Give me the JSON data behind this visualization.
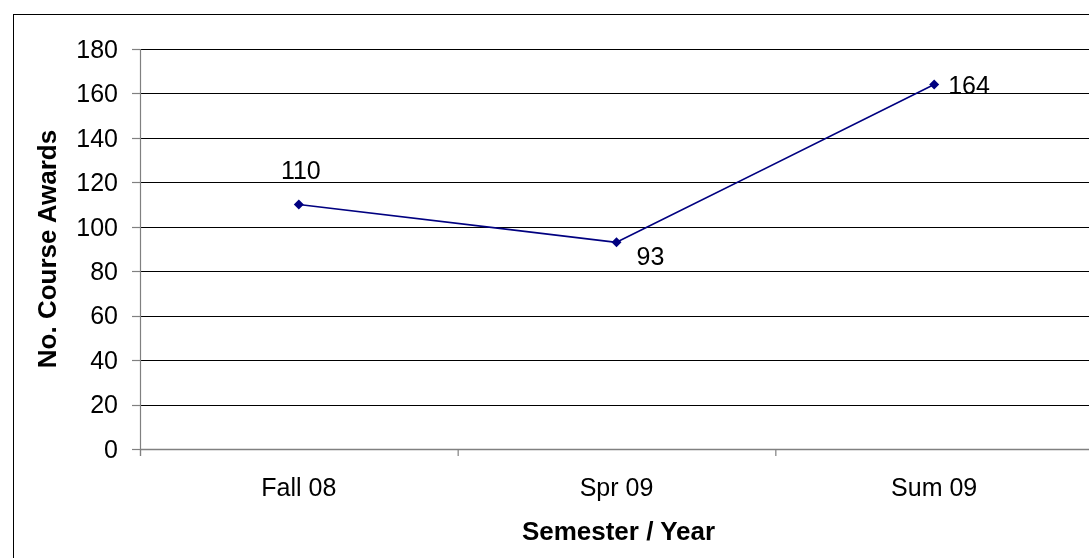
{
  "chart_data": {
    "type": "line",
    "xlabel": "Semester / Year",
    "ylabel": "No. Course Awards",
    "categories": [
      "Fall 08",
      "Spr 09",
      "Sum 09"
    ],
    "series": [
      {
        "color": "#000080",
        "values": [
          110,
          93,
          164
        ]
      }
    ],
    "ylim": [
      0,
      180
    ],
    "yticks": [
      0,
      20,
      40,
      60,
      80,
      100,
      120,
      140,
      160,
      180
    ],
    "grid": "y",
    "marker": "diamond",
    "data_labels": true
  }
}
